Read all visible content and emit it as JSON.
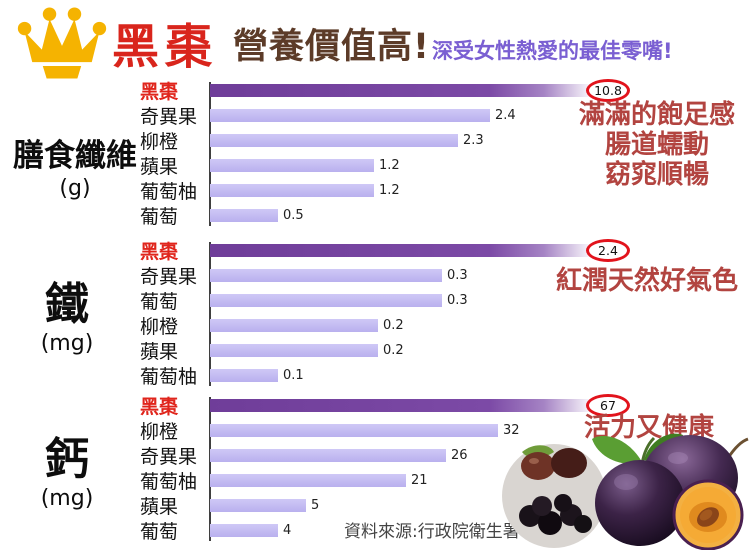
{
  "header": {
    "title": "黑棗",
    "headline": "營養價值高!",
    "subtitle": "深受女性熱愛的最佳零嘴!"
  },
  "icons": {
    "crown": "crown-icon",
    "photo": "plums-photo"
  },
  "colors": {
    "crown_gold": "#F5B301",
    "title_red": "#D9251C",
    "headline_brown": "#5C3B28",
    "subtitle_purple": "#7A5FD2",
    "highlight_bar_purple": "#7C4AA6",
    "bar_lavender": "#C3BBF1",
    "oval_stroke_red": "#E2131C",
    "annotation_red": "#B24440"
  },
  "source": "資料來源:行政院衛生署",
  "chart_data": [
    {
      "type": "bar",
      "orientation": "horizontal",
      "title": "膳食纖維",
      "unit": "(g)",
      "highlight_category": "黑棗",
      "rows": [
        {
          "label": "黑棗",
          "value": "10.8",
          "width_pct": 97,
          "highlight": true
        },
        {
          "label": "奇異果",
          "value": "2.4",
          "width_pct": 70
        },
        {
          "label": "柳橙",
          "value": "2.3",
          "width_pct": 62
        },
        {
          "label": "蘋果",
          "value": "1.2",
          "width_pct": 41
        },
        {
          "label": "葡萄柚",
          "value": "1.2",
          "width_pct": 41
        },
        {
          "label": "葡萄",
          "value": "0.5",
          "width_pct": 17
        }
      ],
      "annotation": [
        "滿滿的飽足感",
        "腸道蠕動",
        "窈窕順暢"
      ]
    },
    {
      "type": "bar",
      "orientation": "horizontal",
      "title": "鐵",
      "unit": "(mg)",
      "highlight_category": "黑棗",
      "rows": [
        {
          "label": "黑棗",
          "value": "2.4",
          "width_pct": 97,
          "highlight": true
        },
        {
          "label": "奇異果",
          "value": "0.3",
          "width_pct": 58
        },
        {
          "label": "葡萄",
          "value": "0.3",
          "width_pct": 58
        },
        {
          "label": "柳橙",
          "value": "0.2",
          "width_pct": 42
        },
        {
          "label": "蘋果",
          "value": "0.2",
          "width_pct": 42
        },
        {
          "label": "葡萄柚",
          "value": "0.1",
          "width_pct": 17
        }
      ],
      "annotation": [
        "紅潤天然好氣色"
      ]
    },
    {
      "type": "bar",
      "orientation": "horizontal",
      "title": "鈣",
      "unit": "(mg)",
      "highlight_category": "黑棗",
      "rows": [
        {
          "label": "黑棗",
          "value": "67",
          "width_pct": 97,
          "highlight": true
        },
        {
          "label": "柳橙",
          "value": "32",
          "width_pct": 72
        },
        {
          "label": "奇異果",
          "value": "26",
          "width_pct": 59
        },
        {
          "label": "葡萄柚",
          "value": "21",
          "width_pct": 49
        },
        {
          "label": "蘋果",
          "value": "5",
          "width_pct": 24
        },
        {
          "label": "葡萄",
          "value": "4",
          "width_pct": 17
        }
      ],
      "annotation": [
        "活力又健康"
      ]
    }
  ]
}
